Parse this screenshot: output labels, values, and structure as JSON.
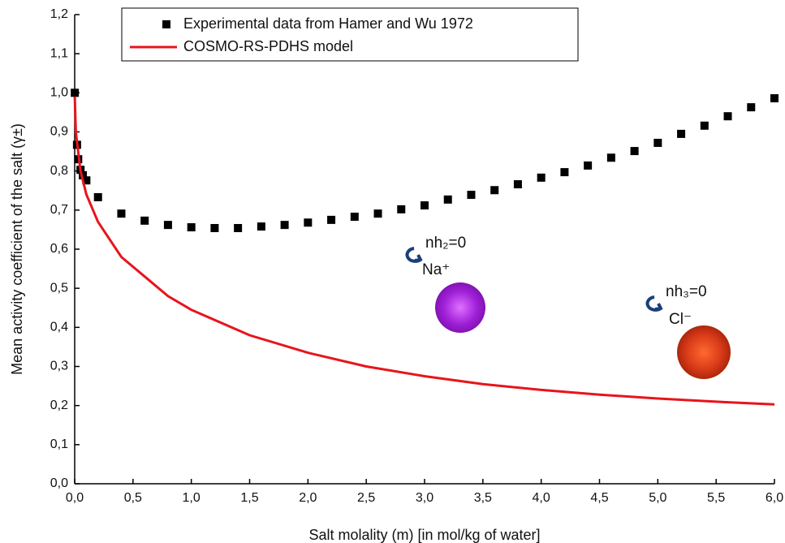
{
  "chart_data": {
    "type": "line",
    "x_label": "Salt molality (m) [in mol/kg of water]",
    "y_label": "Mean activity coefficient of the salt (γ±)",
    "xlim": [
      0,
      6
    ],
    "ylim": [
      0,
      1.2
    ],
    "xticks": [
      {
        "value": 0,
        "label": "0,0"
      },
      {
        "value": 0.5,
        "label": "0,5"
      },
      {
        "value": 1,
        "label": "1,0"
      },
      {
        "value": 1.5,
        "label": "1,5"
      },
      {
        "value": 2,
        "label": "2,0"
      },
      {
        "value": 2.5,
        "label": "2,5"
      },
      {
        "value": 3,
        "label": "3,0"
      },
      {
        "value": 3.5,
        "label": "3,5"
      },
      {
        "value": 4,
        "label": "4,0"
      },
      {
        "value": 4.5,
        "label": "4,5"
      },
      {
        "value": 5,
        "label": "5,0"
      },
      {
        "value": 5.5,
        "label": "5,5"
      },
      {
        "value": 6,
        "label": "6,0"
      }
    ],
    "yticks": [
      {
        "value": 0,
        "label": "0,0"
      },
      {
        "value": 0.1,
        "label": "0,1"
      },
      {
        "value": 0.2,
        "label": "0,2"
      },
      {
        "value": 0.3,
        "label": "0,3"
      },
      {
        "value": 0.4,
        "label": "0,4"
      },
      {
        "value": 0.5,
        "label": "0,5"
      },
      {
        "value": 0.6,
        "label": "0,6"
      },
      {
        "value": 0.7,
        "label": "0,7"
      },
      {
        "value": 0.8,
        "label": "0,8"
      },
      {
        "value": 0.9,
        "label": "0,9"
      },
      {
        "value": 1,
        "label": "1,0"
      },
      {
        "value": 1.1,
        "label": "1,1"
      },
      {
        "value": 1.2,
        "label": "1,2"
      }
    ],
    "legend": "top-center",
    "series": [
      {
        "name": "Experimental data from Hamer and Wu 1972",
        "type": "scatter",
        "color": "#000000",
        "x": [
          0.001,
          0.02,
          0.03,
          0.05,
          0.07,
          0.1,
          0.2,
          0.4,
          0.6,
          0.8,
          1.0,
          1.2,
          1.4,
          1.6,
          1.8,
          2.0,
          2.2,
          2.4,
          2.6,
          2.8,
          3.0,
          3.2,
          3.4,
          3.6,
          3.8,
          4.0,
          4.2,
          4.4,
          4.6,
          4.8,
          5.0,
          5.2,
          5.4,
          5.6,
          5.8,
          6.0
        ],
        "values": [
          1.0,
          0.867,
          0.83,
          0.803,
          0.789,
          0.776,
          0.733,
          0.691,
          0.673,
          0.662,
          0.656,
          0.654,
          0.654,
          0.658,
          0.662,
          0.668,
          0.675,
          0.683,
          0.691,
          0.702,
          0.712,
          0.727,
          0.739,
          0.751,
          0.766,
          0.783,
          0.797,
          0.814,
          0.834,
          0.851,
          0.872,
          0.895,
          0.916,
          0.94,
          0.963,
          0.986
        ]
      },
      {
        "name": "COSMO-RS-PDHS model",
        "type": "line",
        "color": "#e8141c",
        "x": [
          0.001,
          0.01,
          0.05,
          0.1,
          0.2,
          0.4,
          0.6,
          0.8,
          1.0,
          1.5,
          2.0,
          2.5,
          3.0,
          3.5,
          4.0,
          4.5,
          5.0,
          5.5,
          6.0
        ],
        "values": [
          0.99,
          0.9,
          0.8,
          0.74,
          0.67,
          0.58,
          0.53,
          0.48,
          0.445,
          0.38,
          0.335,
          0.3,
          0.275,
          0.255,
          0.24,
          0.228,
          0.218,
          0.21,
          0.203
        ]
      }
    ],
    "annotations": [
      "nh₂=0",
      "Na⁺",
      "nh₃=0",
      "Cl⁻"
    ]
  }
}
